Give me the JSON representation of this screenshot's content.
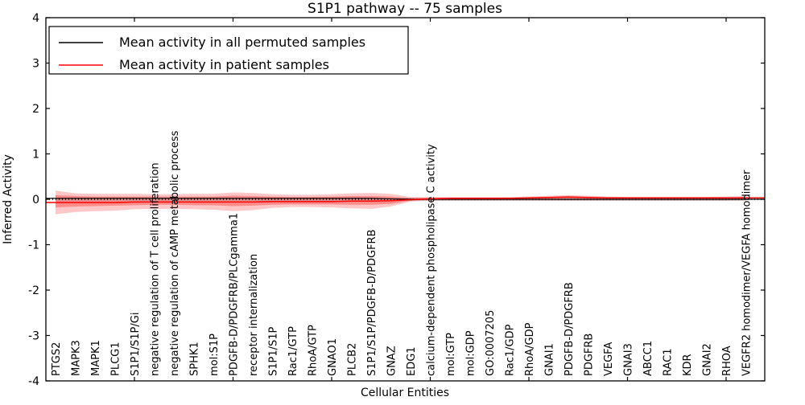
{
  "chart_data": {
    "type": "line",
    "title": "S1P1 pathway -- 75 samples",
    "xlabel": "Cellular Entities",
    "ylabel": "Inferred Activity",
    "ylim": [
      -4,
      4
    ],
    "yticks": [
      -4,
      -3,
      -2,
      -1,
      0,
      1,
      2,
      3,
      4
    ],
    "grid": false,
    "legend_position": "upper left",
    "legend": [
      {
        "label": "Mean activity in all permuted samples",
        "color": "#000000"
      },
      {
        "label": "Mean activity in patient samples",
        "color": "#ff0000"
      }
    ],
    "categories": [
      "PTGS2",
      "MAPK3",
      "MAPK1",
      "PLCG1",
      "S1P1/S1P/Gi",
      "negative regulation of T cell proliferation",
      "negative regulation of cAMP metabolic process",
      "SPHK1",
      "mol:S1P",
      "PDGFB-D/PDGFRB/PLCgamma1",
      "receptor internalization",
      "S1P1/S1P",
      "Rac1/GTP",
      "RhoA/GTP",
      "GNAO1",
      "PLCB2",
      "S1P1/S1P/PDGFB-D/PDGFRB",
      "GNAZ",
      "EDG1",
      "calcium-dependent phospholipase C activity",
      "mol:GTP",
      "mol:GDP",
      "GO:0007205",
      "Rac1/GDP",
      "RhoA/GDP",
      "GNAI1",
      "PDGFB-D/PDGFRB",
      "PDGFRB",
      "VEGFA",
      "GNAI3",
      "ABCC1",
      "RAC1",
      "KDR",
      "GNAI2",
      "RHOA",
      "VEGFR2 homodimer/VEGFA homodimer"
    ],
    "series": [
      {
        "name": "Mean activity in all permuted samples",
        "color": "#000000",
        "values": [
          0.02,
          0.02,
          0.02,
          0.02,
          0.02,
          0.02,
          0.02,
          0.02,
          0.02,
          0.02,
          0.02,
          0.02,
          0.02,
          0.02,
          0.02,
          0.02,
          0.02,
          0.01,
          0,
          0,
          0,
          0,
          0,
          0,
          0,
          0,
          0,
          0,
          0,
          0,
          0,
          0,
          0,
          0,
          0,
          0
        ]
      },
      {
        "name": "Mean activity in patient samples",
        "color": "#ff0000",
        "values": [
          -0.07,
          -0.07,
          -0.07,
          -0.07,
          -0.06,
          -0.06,
          -0.06,
          -0.06,
          -0.06,
          -0.06,
          -0.06,
          -0.05,
          -0.05,
          -0.05,
          -0.05,
          -0.04,
          -0.04,
          -0.03,
          -0.01,
          0.01,
          0.02,
          0.02,
          0.02,
          0.02,
          0.03,
          0.04,
          0.05,
          0.04,
          0.03,
          0.03,
          0.03,
          0.03,
          0.03,
          0.03,
          0.03,
          0.03
        ]
      }
    ],
    "bands": [
      {
        "name": "patient-std-outer",
        "color": "#ff0000",
        "opacity": 0.22,
        "top": [
          0.19,
          0.13,
          0.12,
          0.12,
          0.12,
          0.11,
          0.11,
          0.12,
          0.12,
          0.15,
          0.14,
          0.11,
          0.1,
          0.1,
          0.11,
          0.13,
          0.14,
          0.12,
          0.05,
          0.05,
          0.05,
          0.05,
          0.05,
          0.05,
          0.06,
          0.08,
          0.09,
          0.08,
          0.06,
          0.05,
          0.05,
          0.05,
          0.05,
          0.05,
          0.06,
          0.07
        ],
        "bottom": [
          -0.33,
          -0.28,
          -0.26,
          -0.25,
          -0.22,
          -0.21,
          -0.21,
          -0.22,
          -0.23,
          -0.26,
          -0.24,
          -0.19,
          -0.17,
          -0.17,
          -0.18,
          -0.2,
          -0.21,
          -0.16,
          -0.05,
          -0.03,
          -0.03,
          -0.03,
          -0.03,
          -0.03,
          -0.03,
          -0.03,
          -0.03,
          -0.03,
          -0.03,
          -0.03,
          -0.03,
          -0.03,
          -0.03,
          -0.03,
          -0.03,
          -0.02
        ]
      },
      {
        "name": "patient-std-inner",
        "color": "#ff0000",
        "opacity": 0.3,
        "top": [
          0.09,
          0.07,
          0.06,
          0.06,
          0.06,
          0.06,
          0.06,
          0.06,
          0.06,
          0.08,
          0.07,
          0.06,
          0.05,
          0.05,
          0.06,
          0.07,
          0.07,
          0.06,
          0.03,
          0.03,
          0.03,
          0.03,
          0.03,
          0.03,
          0.04,
          0.05,
          0.06,
          0.05,
          0.04,
          0.04,
          0.04,
          0.04,
          0.04,
          0.04,
          0.04,
          0.05
        ],
        "bottom": [
          -0.18,
          -0.16,
          -0.15,
          -0.14,
          -0.13,
          -0.12,
          -0.12,
          -0.13,
          -0.13,
          -0.15,
          -0.14,
          -0.12,
          -0.11,
          -0.11,
          -0.11,
          -0.12,
          -0.12,
          -0.1,
          -0.03,
          -0.01,
          -0.01,
          -0.01,
          -0.01,
          -0.01,
          -0.01,
          -0.01,
          -0.01,
          -0.01,
          -0.01,
          -0.01,
          -0.01,
          -0.01,
          -0.01,
          -0.01,
          -0.01,
          -0.01
        ]
      },
      {
        "name": "permuted-std",
        "color": "#999999",
        "opacity": 0.4,
        "top": 0.02,
        "bottom": -0.035
      }
    ],
    "zero_line": {
      "y": 0,
      "style": "dotted",
      "color": "#000000"
    }
  }
}
